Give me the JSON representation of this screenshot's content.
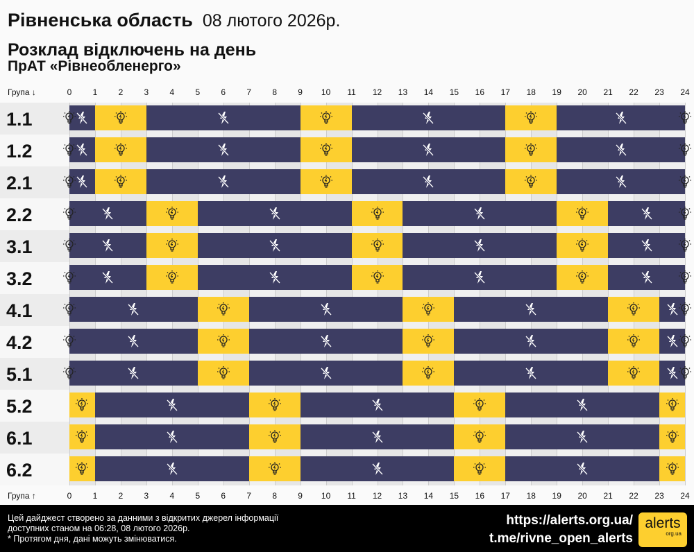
{
  "header": {
    "region": "Рівненська область",
    "date": "08 лютого 2026р.",
    "title": "Розклад відключень на день",
    "company": "ПрАТ «Рівнеобленерго»"
  },
  "axis": {
    "top_label": "Група ↓",
    "bottom_label": "Група ↑",
    "hours": [
      "0",
      "1",
      "2",
      "3",
      "4",
      "5",
      "6",
      "7",
      "8",
      "9",
      "10",
      "11",
      "12",
      "13",
      "14",
      "15",
      "16",
      "17",
      "18",
      "19",
      "20",
      "21",
      "22",
      "23",
      "24"
    ]
  },
  "colors": {
    "off": "#3d3d63",
    "on": "#fdcf2f"
  },
  "icons": {
    "on": "lightbulb-icon",
    "off": "power-off-lightning-icon"
  },
  "groups": [
    {
      "name": "1.1",
      "segments": [
        [
          0,
          1,
          "off"
        ],
        [
          1,
          3,
          "on"
        ],
        [
          3,
          9,
          "off"
        ],
        [
          9,
          11,
          "on"
        ],
        [
          11,
          17,
          "off"
        ],
        [
          17,
          19,
          "on"
        ],
        [
          19,
          24,
          "off"
        ]
      ]
    },
    {
      "name": "1.2",
      "segments": [
        [
          0,
          1,
          "off"
        ],
        [
          1,
          3,
          "on"
        ],
        [
          3,
          9,
          "off"
        ],
        [
          9,
          11,
          "on"
        ],
        [
          11,
          17,
          "off"
        ],
        [
          17,
          19,
          "on"
        ],
        [
          19,
          24,
          "off"
        ]
      ]
    },
    {
      "name": "2.1",
      "segments": [
        [
          0,
          1,
          "off"
        ],
        [
          1,
          3,
          "on"
        ],
        [
          3,
          9,
          "off"
        ],
        [
          9,
          11,
          "on"
        ],
        [
          11,
          17,
          "off"
        ],
        [
          17,
          19,
          "on"
        ],
        [
          19,
          24,
          "off"
        ]
      ]
    },
    {
      "name": "2.2",
      "segments": [
        [
          0,
          3,
          "off"
        ],
        [
          3,
          5,
          "on"
        ],
        [
          5,
          11,
          "off"
        ],
        [
          11,
          13,
          "on"
        ],
        [
          13,
          19,
          "off"
        ],
        [
          19,
          21,
          "on"
        ],
        [
          21,
          24,
          "off"
        ]
      ]
    },
    {
      "name": "3.1",
      "segments": [
        [
          0,
          3,
          "off"
        ],
        [
          3,
          5,
          "on"
        ],
        [
          5,
          11,
          "off"
        ],
        [
          11,
          13,
          "on"
        ],
        [
          13,
          19,
          "off"
        ],
        [
          19,
          21,
          "on"
        ],
        [
          21,
          24,
          "off"
        ]
      ]
    },
    {
      "name": "3.2",
      "segments": [
        [
          0,
          3,
          "off"
        ],
        [
          3,
          5,
          "on"
        ],
        [
          5,
          11,
          "off"
        ],
        [
          11,
          13,
          "on"
        ],
        [
          13,
          19,
          "off"
        ],
        [
          19,
          21,
          "on"
        ],
        [
          21,
          24,
          "off"
        ]
      ]
    },
    {
      "name": "4.1",
      "segments": [
        [
          0,
          5,
          "off"
        ],
        [
          5,
          7,
          "on"
        ],
        [
          7,
          13,
          "off"
        ],
        [
          13,
          15,
          "on"
        ],
        [
          15,
          21,
          "off"
        ],
        [
          21,
          23,
          "on"
        ],
        [
          23,
          24,
          "off"
        ]
      ]
    },
    {
      "name": "4.2",
      "segments": [
        [
          0,
          5,
          "off"
        ],
        [
          5,
          7,
          "on"
        ],
        [
          7,
          13,
          "off"
        ],
        [
          13,
          15,
          "on"
        ],
        [
          15,
          21,
          "off"
        ],
        [
          21,
          23,
          "on"
        ],
        [
          23,
          24,
          "off"
        ]
      ]
    },
    {
      "name": "5.1",
      "segments": [
        [
          0,
          5,
          "off"
        ],
        [
          5,
          7,
          "on"
        ],
        [
          7,
          13,
          "off"
        ],
        [
          13,
          15,
          "on"
        ],
        [
          15,
          21,
          "off"
        ],
        [
          21,
          23,
          "on"
        ],
        [
          23,
          24,
          "off"
        ]
      ]
    },
    {
      "name": "5.2",
      "segments": [
        [
          0,
          1,
          "on"
        ],
        [
          1,
          7,
          "off"
        ],
        [
          7,
          9,
          "on"
        ],
        [
          9,
          15,
          "off"
        ],
        [
          15,
          17,
          "on"
        ],
        [
          17,
          23,
          "off"
        ],
        [
          23,
          24,
          "on"
        ]
      ]
    },
    {
      "name": "6.1",
      "segments": [
        [
          0,
          1,
          "on"
        ],
        [
          1,
          7,
          "off"
        ],
        [
          7,
          9,
          "on"
        ],
        [
          9,
          15,
          "off"
        ],
        [
          15,
          17,
          "on"
        ],
        [
          17,
          23,
          "off"
        ],
        [
          23,
          24,
          "on"
        ]
      ]
    },
    {
      "name": "6.2",
      "segments": [
        [
          0,
          1,
          "on"
        ],
        [
          1,
          7,
          "off"
        ],
        [
          7,
          9,
          "on"
        ],
        [
          9,
          15,
          "off"
        ],
        [
          15,
          17,
          "on"
        ],
        [
          17,
          23,
          "off"
        ],
        [
          23,
          24,
          "on"
        ]
      ]
    }
  ],
  "footer": {
    "line1": "Цей дайджест створено за данними з відкритих джерел інформації",
    "line2": "доступних станом на 06:28, 08 лютого 2026р.",
    "line3": "* Протягом дня, дані можуть змінюватися.",
    "site": "https://alerts.org.ua/",
    "telegram": "t.me/rivne_open_alerts",
    "logo_main": "alerts",
    "logo_sub": "org.ua"
  }
}
